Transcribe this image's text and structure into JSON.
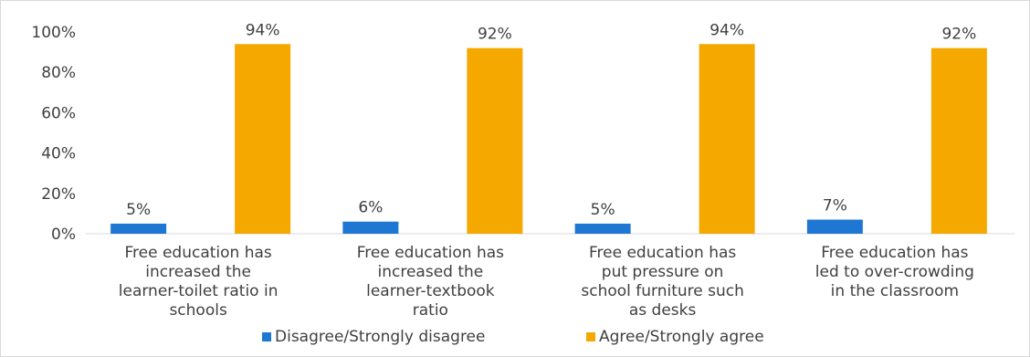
{
  "chart_data": {
    "type": "bar",
    "categories": [
      [
        "Free education has",
        "increased the",
        "learner-toilet ratio in",
        "schools"
      ],
      [
        "Free education has",
        "increased the",
        "learner-textbook",
        "ratio"
      ],
      [
        "Free education has",
        "put pressure on",
        "school furniture such",
        "as desks"
      ],
      [
        "Free education has",
        "led to over-crowding",
        "in the classroom"
      ]
    ],
    "series": [
      {
        "name": "Disagree/Strongly disagree",
        "values": [
          5,
          6,
          5,
          7
        ],
        "labels": [
          "5%",
          "6%",
          "5%",
          "7%"
        ],
        "color": "#1f77d4"
      },
      {
        "name": "Agree/Strongly agree",
        "values": [
          94,
          92,
          94,
          92
        ],
        "labels": [
          "94%",
          "92%",
          "94%",
          "92%"
        ],
        "color": "#f5a800"
      }
    ],
    "ylim": [
      0,
      100
    ],
    "yticks": [
      "0%",
      "20%",
      "40%",
      "60%",
      "80%",
      "100%"
    ],
    "ytick_values": [
      0,
      20,
      40,
      60,
      80,
      100
    ],
    "legend_position": "bottom",
    "grid": false
  }
}
